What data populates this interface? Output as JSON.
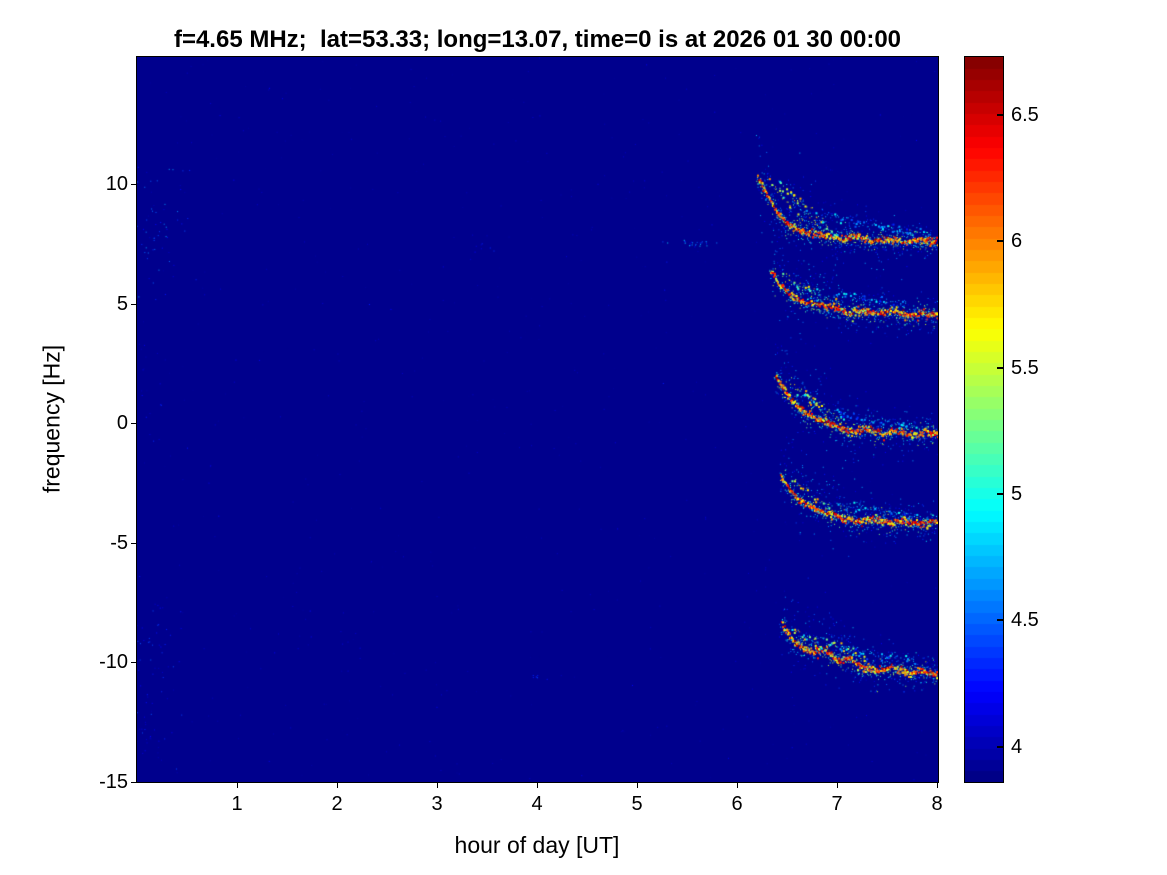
{
  "figure": {
    "background": "#ffffff",
    "frame_color": "#000000"
  },
  "chart_data": {
    "type": "heatmap",
    "subtype": "doppler-spectrogram",
    "title": "f=4.65 MHz;  lat=53.33; long=13.07, time=0 is at 2026 01 30 00:00",
    "xlabel": "hour of day [UT]",
    "ylabel": "frequency [Hz]",
    "xlim": [
      0,
      8.01
    ],
    "ylim": [
      -15,
      15.33
    ],
    "grid": false,
    "xticks": [
      {
        "v": 1,
        "label": "1"
      },
      {
        "v": 2,
        "label": "2"
      },
      {
        "v": 3,
        "label": "3"
      },
      {
        "v": 4,
        "label": "4"
      },
      {
        "v": 5,
        "label": "5"
      },
      {
        "v": 6,
        "label": "6"
      },
      {
        "v": 7,
        "label": "7"
      },
      {
        "v": 8,
        "label": "8"
      }
    ],
    "yticks": [
      {
        "v": -15,
        "label": "-15"
      },
      {
        "v": -10,
        "label": "-10"
      },
      {
        "v": -5,
        "label": "-5"
      },
      {
        "v": 0,
        "label": "0"
      },
      {
        "v": 5,
        "label": "5"
      },
      {
        "v": 10,
        "label": "10"
      }
    ],
    "colormap": "jet",
    "background_value": 3.9,
    "colorbar": {
      "position": "right",
      "clim": [
        3.86,
        6.73
      ],
      "levels": 64,
      "ticks": [
        {
          "v": 4,
          "label": "4"
        },
        {
          "v": 4.5,
          "label": "4.5"
        },
        {
          "v": 5,
          "label": "5"
        },
        {
          "v": 5.5,
          "label": "5.5"
        },
        {
          "v": 6,
          "label": "6"
        },
        {
          "v": 6.5,
          "label": "6.5"
        }
      ]
    },
    "traces": [
      {
        "name": "trace-plus8Hz",
        "centerline": [
          [
            6.2,
            10.4
          ],
          [
            6.28,
            9.6
          ],
          [
            6.38,
            8.9
          ],
          [
            6.5,
            8.35
          ],
          [
            6.62,
            8.05
          ],
          [
            6.75,
            7.95
          ],
          [
            6.9,
            7.85
          ],
          [
            7.05,
            7.7
          ],
          [
            7.2,
            7.85
          ],
          [
            7.35,
            7.6
          ],
          [
            7.5,
            7.75
          ],
          [
            7.65,
            7.6
          ],
          [
            7.8,
            7.7
          ],
          [
            7.95,
            7.6
          ],
          [
            8.0,
            7.65
          ]
        ],
        "branches": [
          {
            "pts": [
              [
                6.3,
                10.3
              ],
              [
                6.72,
                8.15
              ]
            ],
            "faint": false
          },
          {
            "pts": [
              [
                6.42,
                10.1
              ],
              [
                6.85,
                8.05
              ]
            ],
            "faint": false
          },
          {
            "pts": [
              [
                6.55,
                9.6
              ],
              [
                7.0,
                7.95
              ]
            ],
            "faint": false
          },
          {
            "pts": [
              [
                6.95,
                8.75
              ],
              [
                7.3,
                8.35
              ],
              [
                7.7,
                8.1
              ]
            ],
            "faint": true
          },
          {
            "pts": [
              [
                7.55,
                8.15
              ],
              [
                7.75,
                7.95
              ],
              [
                7.95,
                8.05
              ]
            ],
            "faint": true
          }
        ]
      },
      {
        "name": "trace-plus5Hz",
        "centerline": [
          [
            6.33,
            6.4
          ],
          [
            6.42,
            5.8
          ],
          [
            6.52,
            5.35
          ],
          [
            6.65,
            5.05
          ],
          [
            6.8,
            4.95
          ],
          [
            6.95,
            4.85
          ],
          [
            7.1,
            4.6
          ],
          [
            7.25,
            4.75
          ],
          [
            7.4,
            4.6
          ],
          [
            7.55,
            4.7
          ],
          [
            7.7,
            4.5
          ],
          [
            7.85,
            4.65
          ],
          [
            8.0,
            4.55
          ]
        ],
        "branches": [
          {
            "pts": [
              [
                6.45,
                6.2
              ],
              [
                6.85,
                5.1
              ]
            ],
            "faint": false
          },
          {
            "pts": [
              [
                6.6,
                5.9
              ],
              [
                7.05,
                4.9
              ]
            ],
            "faint": false
          },
          {
            "pts": [
              [
                7.0,
                5.5
              ],
              [
                7.35,
                5.15
              ],
              [
                7.7,
                5.0
              ]
            ],
            "faint": true
          }
        ]
      },
      {
        "name": "trace-0Hz",
        "centerline": [
          [
            6.38,
            1.95
          ],
          [
            6.48,
            1.3
          ],
          [
            6.58,
            0.75
          ],
          [
            6.7,
            0.35
          ],
          [
            6.85,
            0.1
          ],
          [
            7.0,
            -0.15
          ],
          [
            7.15,
            -0.35
          ],
          [
            7.3,
            -0.2
          ],
          [
            7.45,
            -0.45
          ],
          [
            7.6,
            -0.3
          ],
          [
            7.75,
            -0.5
          ],
          [
            7.9,
            -0.35
          ],
          [
            8.0,
            -0.45
          ]
        ],
        "branches": [
          {
            "pts": [
              [
                6.5,
                1.8
              ],
              [
                6.9,
                0.3
              ]
            ],
            "faint": false
          },
          {
            "pts": [
              [
                6.65,
                1.4
              ],
              [
                7.1,
                -0.1
              ]
            ],
            "faint": false
          },
          {
            "pts": [
              [
                7.0,
                0.5
              ],
              [
                7.4,
                0.1
              ],
              [
                7.8,
                -0.05
              ]
            ],
            "faint": true
          }
        ]
      },
      {
        "name": "trace-minus4Hz",
        "centerline": [
          [
            6.43,
            -2.2
          ],
          [
            6.52,
            -2.8
          ],
          [
            6.62,
            -3.25
          ],
          [
            6.75,
            -3.55
          ],
          [
            6.9,
            -3.75
          ],
          [
            7.05,
            -3.95
          ],
          [
            7.2,
            -4.1
          ],
          [
            7.35,
            -4.0
          ],
          [
            7.5,
            -4.15
          ],
          [
            7.65,
            -4.05
          ],
          [
            7.8,
            -4.2
          ],
          [
            7.95,
            -4.1
          ],
          [
            8.0,
            -4.15
          ]
        ],
        "branches": [
          {
            "pts": [
              [
                6.55,
                -2.4
              ],
              [
                6.95,
                -3.6
              ]
            ],
            "faint": false
          },
          {
            "pts": [
              [
                7.0,
                -3.4
              ],
              [
                7.4,
                -3.6
              ],
              [
                7.8,
                -3.8
              ]
            ],
            "faint": true
          }
        ]
      },
      {
        "name": "trace-minus10Hz",
        "centerline": [
          [
            6.44,
            -8.4
          ],
          [
            6.53,
            -8.95
          ],
          [
            6.63,
            -9.35
          ],
          [
            6.75,
            -9.55
          ],
          [
            6.88,
            -9.45
          ],
          [
            7.0,
            -9.95
          ],
          [
            7.12,
            -9.8
          ],
          [
            7.25,
            -10.25
          ],
          [
            7.4,
            -10.35
          ],
          [
            7.55,
            -10.2
          ],
          [
            7.7,
            -10.45
          ],
          [
            7.85,
            -10.35
          ],
          [
            8.0,
            -10.5
          ]
        ],
        "branches": [
          {
            "pts": [
              [
                6.55,
                -8.6
              ],
              [
                6.9,
                -9.5
              ]
            ],
            "faint": false
          },
          {
            "pts": [
              [
                6.9,
                -9.1
              ],
              [
                7.3,
                -9.9
              ]
            ],
            "faint": false
          },
          {
            "pts": [
              [
                7.0,
                -9.3
              ],
              [
                7.4,
                -9.7
              ],
              [
                7.8,
                -9.8
              ]
            ],
            "faint": true
          }
        ]
      }
    ],
    "speckle_clusters": [
      {
        "h": 0.15,
        "f": 8.6,
        "dh": 0.18,
        "df": 1.2,
        "n": 70,
        "vmin": 4.0,
        "vmax": 4.7
      },
      {
        "h": 0.12,
        "f": -10.0,
        "dh": 0.15,
        "df": 1.5,
        "n": 55,
        "vmin": 4.0,
        "vmax": 4.5
      },
      {
        "h": 0.15,
        "f": -13.0,
        "dh": 0.12,
        "df": 0.8,
        "n": 28,
        "vmin": 4.0,
        "vmax": 4.45
      },
      {
        "h": 0.1,
        "f": 2.3,
        "dh": 0.12,
        "df": 2.0,
        "n": 30,
        "vmin": 3.95,
        "vmax": 4.35
      },
      {
        "h": 5.55,
        "f": 7.55,
        "dh": 0.12,
        "df": 0.08,
        "n": 26,
        "vmin": 4.2,
        "vmax": 4.9
      },
      {
        "h": 3.45,
        "f": 7.4,
        "dh": 0.05,
        "df": 0.1,
        "n": 7,
        "vmin": 4.1,
        "vmax": 4.45
      },
      {
        "h": 4.0,
        "f": -10.6,
        "dh": 0.04,
        "df": 0.1,
        "n": 7,
        "vmin": 4.1,
        "vmax": 4.5
      },
      {
        "h": 2.0,
        "f": -9.0,
        "dh": 0.3,
        "df": 1.0,
        "n": 10,
        "vmin": 3.95,
        "vmax": 4.25
      }
    ],
    "sparse_noise": {
      "count": 650,
      "vmin": 3.9,
      "vmax": 4.3
    },
    "description": "Quiet background (~3.9) until about 6.2 UT; five descending Doppler traces appear near +8, +5, 0, -4 and -10.5 Hz frequency offsets and persist with small wiggles until 8 UT."
  }
}
